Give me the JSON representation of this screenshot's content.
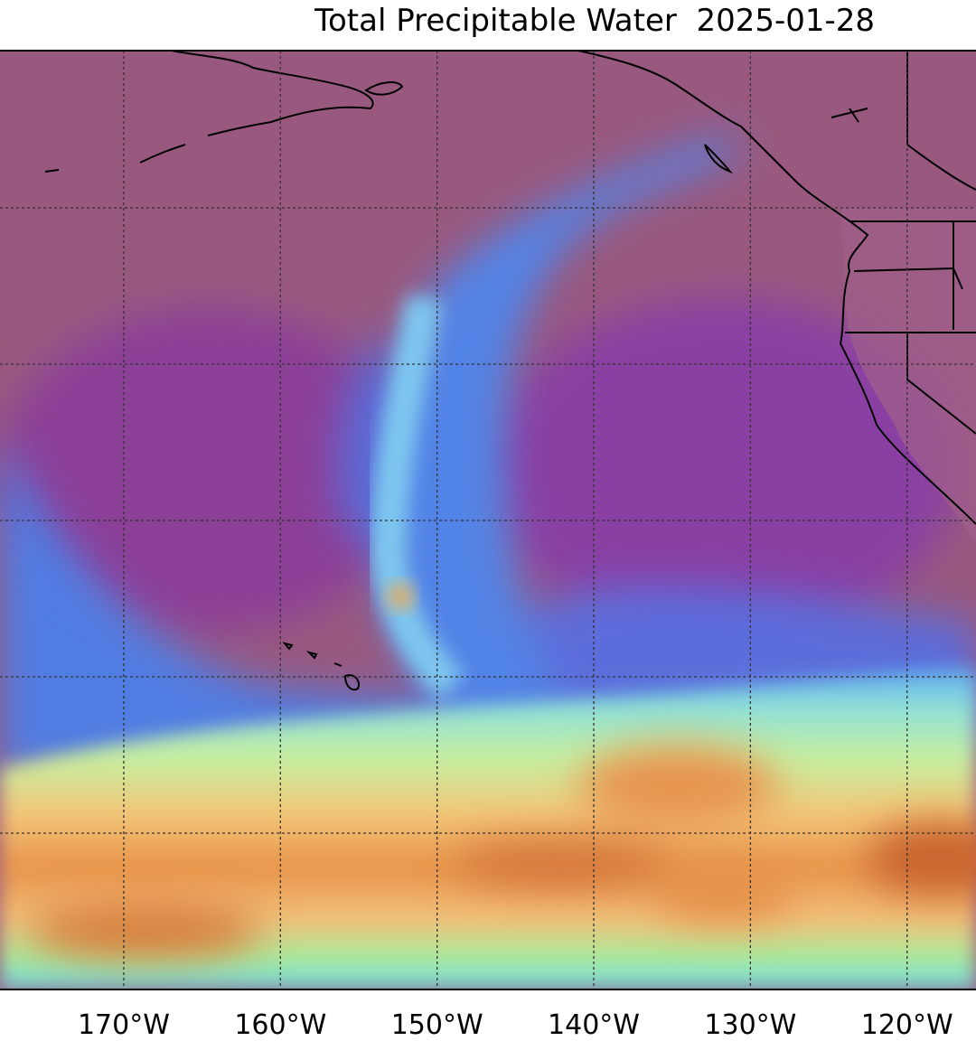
{
  "map": {
    "title": "Total Precipitable Water  2025-01-28",
    "lonlim": [
      -177.9,
      -115.6
    ],
    "lonticks": [
      {
        "value": -170,
        "label": "170°W"
      },
      {
        "value": -160,
        "label": "160°W"
      },
      {
        "value": -150,
        "label": "150°W"
      },
      {
        "value": -140,
        "label": "140°W"
      },
      {
        "value": -130,
        "label": "130°W"
      },
      {
        "value": -120,
        "label": "120°W"
      }
    ]
  }
}
